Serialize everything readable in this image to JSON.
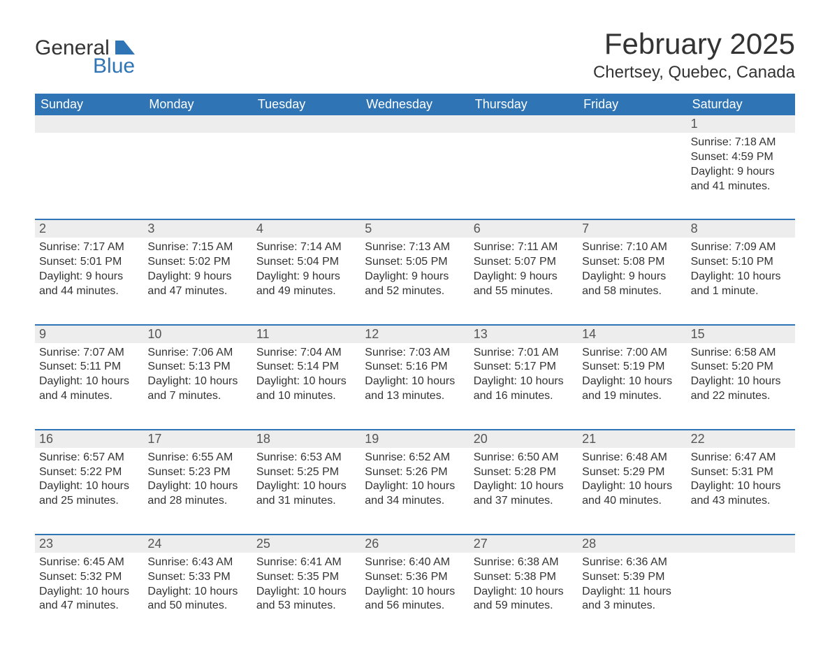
{
  "brand": {
    "text1": "General",
    "text2": "Blue",
    "accent_color": "#2f74b5"
  },
  "title": "February 2025",
  "location": "Chertsey, Quebec, Canada",
  "colors": {
    "header_bg": "#2f74b5",
    "header_fg": "#ffffff",
    "daynum_bg": "#ededed",
    "text": "#333333",
    "rule": "#2f74b5",
    "page_bg": "#ffffff"
  },
  "fonts": {
    "title_size_pt": 32,
    "location_size_pt": 18,
    "dayheader_size_pt": 14,
    "body_size_pt": 12
  },
  "day_names": [
    "Sunday",
    "Monday",
    "Tuesday",
    "Wednesday",
    "Thursday",
    "Friday",
    "Saturday"
  ],
  "weeks": [
    [
      {
        "n": "",
        "sr": "",
        "ss": "",
        "dl": ""
      },
      {
        "n": "",
        "sr": "",
        "ss": "",
        "dl": ""
      },
      {
        "n": "",
        "sr": "",
        "ss": "",
        "dl": ""
      },
      {
        "n": "",
        "sr": "",
        "ss": "",
        "dl": ""
      },
      {
        "n": "",
        "sr": "",
        "ss": "",
        "dl": ""
      },
      {
        "n": "",
        "sr": "",
        "ss": "",
        "dl": ""
      },
      {
        "n": "1",
        "sr": "Sunrise: 7:18 AM",
        "ss": "Sunset: 4:59 PM",
        "dl": "Daylight: 9 hours and 41 minutes."
      }
    ],
    [
      {
        "n": "2",
        "sr": "Sunrise: 7:17 AM",
        "ss": "Sunset: 5:01 PM",
        "dl": "Daylight: 9 hours and 44 minutes."
      },
      {
        "n": "3",
        "sr": "Sunrise: 7:15 AM",
        "ss": "Sunset: 5:02 PM",
        "dl": "Daylight: 9 hours and 47 minutes."
      },
      {
        "n": "4",
        "sr": "Sunrise: 7:14 AM",
        "ss": "Sunset: 5:04 PM",
        "dl": "Daylight: 9 hours and 49 minutes."
      },
      {
        "n": "5",
        "sr": "Sunrise: 7:13 AM",
        "ss": "Sunset: 5:05 PM",
        "dl": "Daylight: 9 hours and 52 minutes."
      },
      {
        "n": "6",
        "sr": "Sunrise: 7:11 AM",
        "ss": "Sunset: 5:07 PM",
        "dl": "Daylight: 9 hours and 55 minutes."
      },
      {
        "n": "7",
        "sr": "Sunrise: 7:10 AM",
        "ss": "Sunset: 5:08 PM",
        "dl": "Daylight: 9 hours and 58 minutes."
      },
      {
        "n": "8",
        "sr": "Sunrise: 7:09 AM",
        "ss": "Sunset: 5:10 PM",
        "dl": "Daylight: 10 hours and 1 minute."
      }
    ],
    [
      {
        "n": "9",
        "sr": "Sunrise: 7:07 AM",
        "ss": "Sunset: 5:11 PM",
        "dl": "Daylight: 10 hours and 4 minutes."
      },
      {
        "n": "10",
        "sr": "Sunrise: 7:06 AM",
        "ss": "Sunset: 5:13 PM",
        "dl": "Daylight: 10 hours and 7 minutes."
      },
      {
        "n": "11",
        "sr": "Sunrise: 7:04 AM",
        "ss": "Sunset: 5:14 PM",
        "dl": "Daylight: 10 hours and 10 minutes."
      },
      {
        "n": "12",
        "sr": "Sunrise: 7:03 AM",
        "ss": "Sunset: 5:16 PM",
        "dl": "Daylight: 10 hours and 13 minutes."
      },
      {
        "n": "13",
        "sr": "Sunrise: 7:01 AM",
        "ss": "Sunset: 5:17 PM",
        "dl": "Daylight: 10 hours and 16 minutes."
      },
      {
        "n": "14",
        "sr": "Sunrise: 7:00 AM",
        "ss": "Sunset: 5:19 PM",
        "dl": "Daylight: 10 hours and 19 minutes."
      },
      {
        "n": "15",
        "sr": "Sunrise: 6:58 AM",
        "ss": "Sunset: 5:20 PM",
        "dl": "Daylight: 10 hours and 22 minutes."
      }
    ],
    [
      {
        "n": "16",
        "sr": "Sunrise: 6:57 AM",
        "ss": "Sunset: 5:22 PM",
        "dl": "Daylight: 10 hours and 25 minutes."
      },
      {
        "n": "17",
        "sr": "Sunrise: 6:55 AM",
        "ss": "Sunset: 5:23 PM",
        "dl": "Daylight: 10 hours and 28 minutes."
      },
      {
        "n": "18",
        "sr": "Sunrise: 6:53 AM",
        "ss": "Sunset: 5:25 PM",
        "dl": "Daylight: 10 hours and 31 minutes."
      },
      {
        "n": "19",
        "sr": "Sunrise: 6:52 AM",
        "ss": "Sunset: 5:26 PM",
        "dl": "Daylight: 10 hours and 34 minutes."
      },
      {
        "n": "20",
        "sr": "Sunrise: 6:50 AM",
        "ss": "Sunset: 5:28 PM",
        "dl": "Daylight: 10 hours and 37 minutes."
      },
      {
        "n": "21",
        "sr": "Sunrise: 6:48 AM",
        "ss": "Sunset: 5:29 PM",
        "dl": "Daylight: 10 hours and 40 minutes."
      },
      {
        "n": "22",
        "sr": "Sunrise: 6:47 AM",
        "ss": "Sunset: 5:31 PM",
        "dl": "Daylight: 10 hours and 43 minutes."
      }
    ],
    [
      {
        "n": "23",
        "sr": "Sunrise: 6:45 AM",
        "ss": "Sunset: 5:32 PM",
        "dl": "Daylight: 10 hours and 47 minutes."
      },
      {
        "n": "24",
        "sr": "Sunrise: 6:43 AM",
        "ss": "Sunset: 5:33 PM",
        "dl": "Daylight: 10 hours and 50 minutes."
      },
      {
        "n": "25",
        "sr": "Sunrise: 6:41 AM",
        "ss": "Sunset: 5:35 PM",
        "dl": "Daylight: 10 hours and 53 minutes."
      },
      {
        "n": "26",
        "sr": "Sunrise: 6:40 AM",
        "ss": "Sunset: 5:36 PM",
        "dl": "Daylight: 10 hours and 56 minutes."
      },
      {
        "n": "27",
        "sr": "Sunrise: 6:38 AM",
        "ss": "Sunset: 5:38 PM",
        "dl": "Daylight: 10 hours and 59 minutes."
      },
      {
        "n": "28",
        "sr": "Sunrise: 6:36 AM",
        "ss": "Sunset: 5:39 PM",
        "dl": "Daylight: 11 hours and 3 minutes."
      },
      {
        "n": "",
        "sr": "",
        "ss": "",
        "dl": ""
      }
    ]
  ]
}
